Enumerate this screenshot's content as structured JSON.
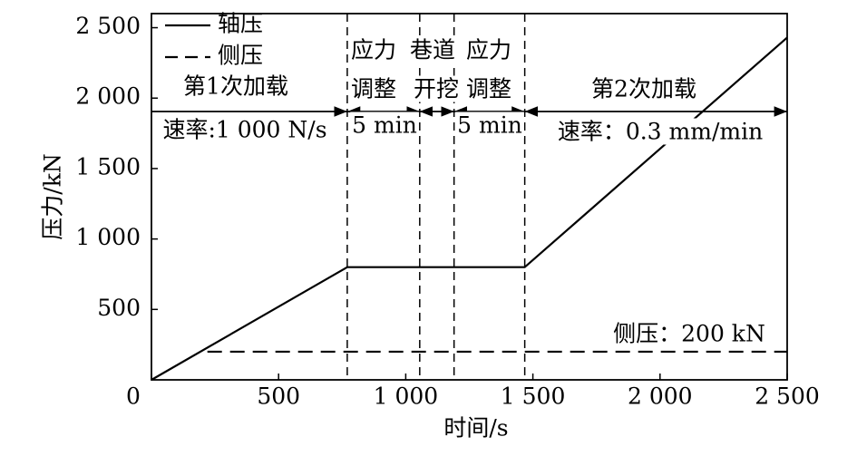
{
  "chart_data": {
    "type": "line",
    "x_label": "时间/s",
    "y_label": "压力/kN",
    "xlim": [
      0,
      2500
    ],
    "ylim": [
      0,
      2600
    ],
    "xticks": [
      0,
      500,
      {
        "value": 1000,
        "label": "1 000"
      },
      {
        "value": 1500,
        "label": "1 500"
      },
      {
        "value": 2000,
        "label": "2 000"
      },
      {
        "value": 2500,
        "label": "2 500"
      }
    ],
    "yticks": [
      500,
      {
        "value": 1000,
        "label": "1 000"
      },
      {
        "value": 1500,
        "label": "1 500"
      },
      {
        "value": 2000,
        "label": "2 000"
      },
      {
        "value": 2500,
        "label": "2 500"
      }
    ],
    "series": [
      {
        "name": "轴压",
        "color": "#000000",
        "dash": false,
        "x": [
          0,
          770,
          1468,
          2500
        ],
        "values": [
          0,
          800,
          800,
          2430
        ]
      },
      {
        "name": "侧压",
        "color": "#000000",
        "dash": true,
        "x": [
          220,
          2500
        ],
        "values": [
          200,
          200
        ]
      }
    ],
    "phase_boundaries": [
      770,
      1055,
      1190,
      1468
    ],
    "annotations": [
      "第1次加载",
      "速率:1 000 N/s",
      "应力",
      "调整",
      "5 min",
      "巷道",
      "开挖",
      "应力",
      "调整",
      "5 min",
      "第2次加载",
      "速率：0.3 mm/min",
      "侧压：200 kN"
    ]
  }
}
